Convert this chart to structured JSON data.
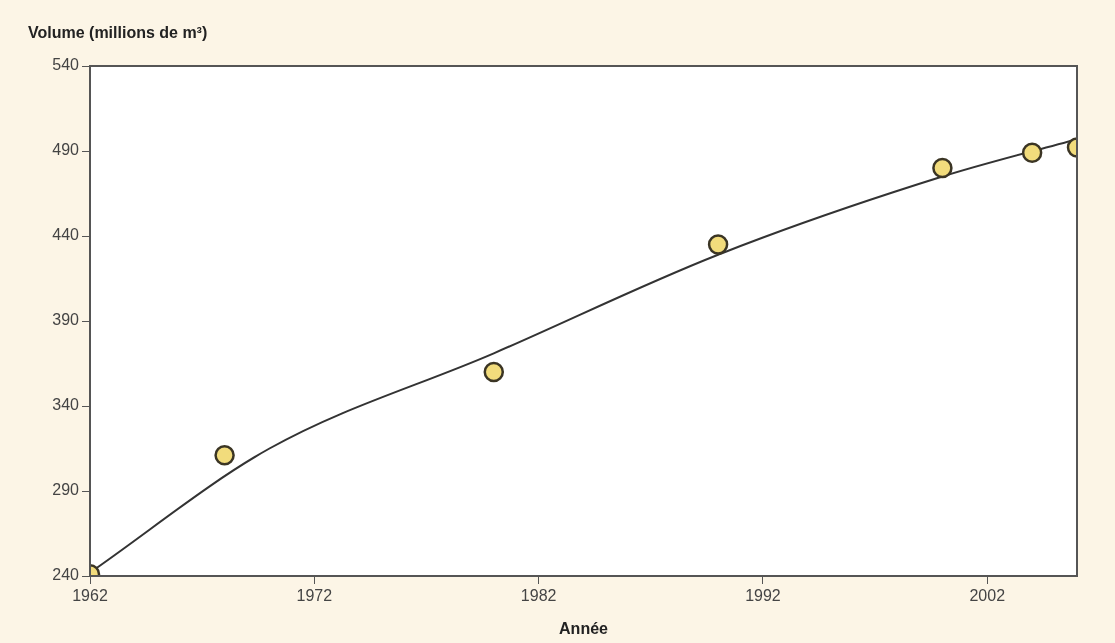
{
  "chart_data": {
    "type": "scatter",
    "ylabel": "Volume (millions de m³)",
    "xlabel": "Année",
    "xlim": [
      1962,
      2006
    ],
    "xticks": [
      1962,
      1972,
      1982,
      1992,
      2002
    ],
    "ylim": [
      240,
      540
    ],
    "yticks": [
      240,
      290,
      340,
      390,
      440,
      490,
      540
    ],
    "grid": false,
    "legend": false,
    "marker": "circle",
    "series": [
      {
        "color": "#f2dc7c",
        "x": [
          1962,
          1968,
          1980,
          1990,
          2000,
          2004,
          2006
        ],
        "values": [
          241,
          311,
          360,
          435,
          480,
          489,
          492
        ]
      },
      {
        "type": "line",
        "color": "#333333",
        "marker": "none",
        "x": [
          1962,
          1970,
          1980,
          1990,
          2000,
          2006
        ],
        "values": [
          242,
          315,
          371,
          429,
          475,
          497
        ]
      }
    ]
  }
}
